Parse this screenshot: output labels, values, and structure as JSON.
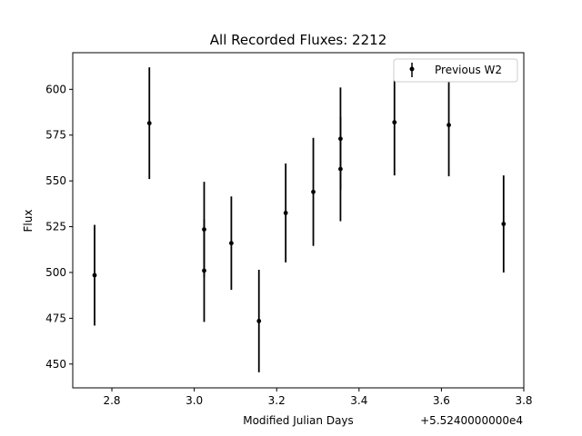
{
  "chart_data": {
    "type": "scatter",
    "title": "All Recorded Fluxes: 2212",
    "xlabel": "Modified Julian Days",
    "ylabel": "Flux",
    "x_offset_label": "+5.5240000000e4",
    "xlim": [
      2.705,
      3.8
    ],
    "ylim": [
      437,
      620
    ],
    "xticks": [
      2.8,
      3.0,
      3.2,
      3.4,
      3.6,
      3.8
    ],
    "xtick_labels": [
      "2.8",
      "3.0",
      "3.2",
      "3.4",
      "3.6",
      "3.8"
    ],
    "yticks": [
      450,
      475,
      500,
      525,
      550,
      575,
      600
    ],
    "ytick_labels": [
      "450",
      "475",
      "500",
      "525",
      "550",
      "575",
      "600"
    ],
    "legend_position": "top-right",
    "grid": false,
    "series": [
      {
        "name": "Previous W2",
        "color": "#000000",
        "marker": "circle",
        "points": [
          {
            "x": 2.758,
            "y": 498.5,
            "err": 27.5
          },
          {
            "x": 2.891,
            "y": 581.5,
            "err": 30.5
          },
          {
            "x": 3.024,
            "y": 523.5,
            "err": 26.0
          },
          {
            "x": 3.024,
            "y": 501.0,
            "err": 28.0
          },
          {
            "x": 3.09,
            "y": 516.0,
            "err": 25.5
          },
          {
            "x": 3.157,
            "y": 473.5,
            "err": 28.0
          },
          {
            "x": 3.222,
            "y": 532.5,
            "err": 27.0
          },
          {
            "x": 3.289,
            "y": 544.0,
            "err": 29.5
          },
          {
            "x": 3.355,
            "y": 573.0,
            "err": 28.0
          },
          {
            "x": 3.355,
            "y": 556.5,
            "err": 28.5
          },
          {
            "x": 3.486,
            "y": 582.0,
            "err": 29.0
          },
          {
            "x": 3.618,
            "y": 580.5,
            "err": 28.0
          },
          {
            "x": 3.751,
            "y": 526.5,
            "err": 26.5
          }
        ]
      }
    ]
  }
}
